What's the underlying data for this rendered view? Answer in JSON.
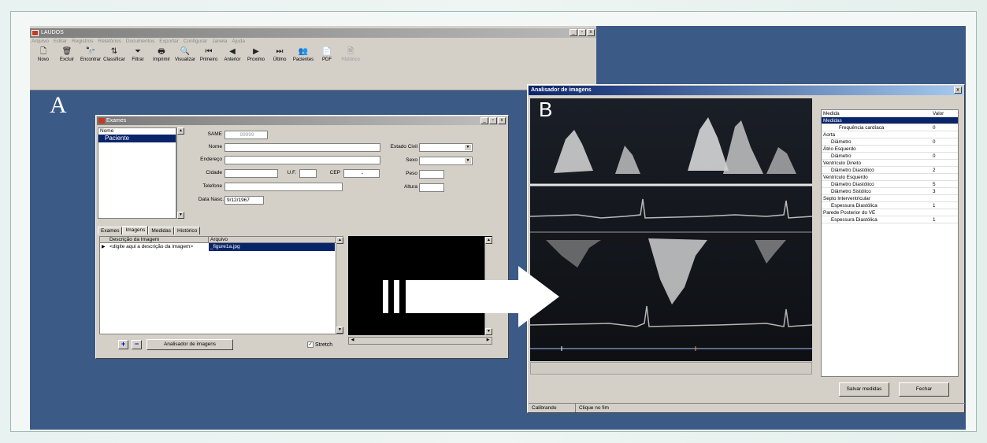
{
  "app": {
    "title": "LAUDOS",
    "menu": [
      "Arquivo",
      "Editar",
      "Registros",
      "Relatórios",
      "Documentos",
      "Exportar",
      "Configurar",
      "Janela",
      "Ajuda"
    ],
    "toolbar": [
      {
        "label": "Novo",
        "icon": "new-document-icon",
        "glyph": "🗋"
      },
      {
        "label": "Excluir",
        "icon": "trash-icon",
        "glyph": "🗑"
      },
      {
        "label": "Encontrar",
        "icon": "binoculars-icon",
        "glyph": "🔭"
      },
      {
        "label": "Classificar",
        "icon": "sort-icon",
        "glyph": "⇅"
      },
      {
        "label": "Filtrar",
        "icon": "filter-icon",
        "glyph": "⏷"
      },
      {
        "label": "Imprimir",
        "icon": "printer-icon",
        "glyph": "🖶"
      },
      {
        "label": "Visualizar",
        "icon": "preview-icon",
        "glyph": "🔍"
      },
      {
        "label": "Primeiro",
        "icon": "first-record-icon",
        "glyph": "⏮"
      },
      {
        "label": "Anterior",
        "icon": "previous-record-icon",
        "glyph": "◀"
      },
      {
        "label": "Proximo",
        "icon": "next-record-icon",
        "glyph": "▶"
      },
      {
        "label": "Último",
        "icon": "last-record-icon",
        "glyph": "⏭"
      },
      {
        "label": "Pacientes",
        "icon": "patients-icon",
        "glyph": "👥"
      },
      {
        "label": "PDF",
        "icon": "pdf-icon",
        "glyph": "📄"
      },
      {
        "label": "Histórico",
        "icon": "history-icon",
        "glyph": "🗎",
        "disabled": true
      }
    ],
    "window_buttons": [
      "_",
      "▫",
      "x"
    ]
  },
  "labels": {
    "a": "A",
    "b": "B"
  },
  "exames": {
    "title": "Exames",
    "list_header": "Nome",
    "selected_patient": "Paciente",
    "fields": {
      "same_label": "SAME",
      "same_value": "99999",
      "nome_label": "Nome",
      "endereco_label": "Endereço",
      "cidade_label": "Cidade",
      "uf_label": "U.F.",
      "cep_label": "CEP",
      "cep_value": "-",
      "telefone_label": "Telefone",
      "nasc_label": "Data Nasc.",
      "nasc_value": "9/12/1967",
      "estado_civil_label": "Estado Civil",
      "sexo_label": "Sexo",
      "peso_label": "Peso",
      "altura_label": "Altura"
    },
    "tabs": [
      "Exames",
      "Imagens",
      "Medidas",
      "Histórico"
    ],
    "active_tab": "Imagens",
    "grid_headers": [
      "Descrição da Imagem",
      "Arquivo"
    ],
    "grid_row": {
      "descricao": "<digite aqui a descrição da imagem>",
      "arquivo": "_figure1a.jpg"
    },
    "add_label": "+",
    "remove_label": "−",
    "analyzer_button": "Analisador de imagens",
    "stretch_label": "Stretch",
    "stretch_checked": true
  },
  "analisador": {
    "title": "Analisador de imagens",
    "table_headers": {
      "medida": "Medida",
      "valor": "Valor"
    },
    "rows": [
      {
        "name": "Medidas",
        "value": "",
        "level": 0,
        "selected": true
      },
      {
        "name": "Frequência cardíaca",
        "value": "0",
        "level": 2
      },
      {
        "name": "Aorta",
        "value": "",
        "level": 0
      },
      {
        "name": "Diâmetro",
        "value": "0",
        "level": 1
      },
      {
        "name": "Átrio Esquerdo",
        "value": "",
        "level": 0
      },
      {
        "name": "Diâmetro",
        "value": "0",
        "level": 1
      },
      {
        "name": "Ventrículo Direito",
        "value": "",
        "level": 0
      },
      {
        "name": "Diâmetro Diastólico",
        "value": "2",
        "level": 1
      },
      {
        "name": "Ventrículo Esquerdo",
        "value": "",
        "level": 0
      },
      {
        "name": "Diâmetro Diastólico",
        "value": "5",
        "level": 1
      },
      {
        "name": "Diâmetro Sistólico",
        "value": "3",
        "level": 1
      },
      {
        "name": "Septo Interventricular",
        "value": "",
        "level": 0
      },
      {
        "name": "Espessura Diastólica",
        "value": "1",
        "level": 1
      },
      {
        "name": "Parede Posterior do VE",
        "value": "",
        "level": 0
      },
      {
        "name": "Espessura Diastólica",
        "value": "1",
        "level": 1
      }
    ],
    "save_button": "Salvar medidas",
    "close_button": "Fechar",
    "status": [
      "Calibrando",
      "Clique no fim"
    ],
    "close_x": "x"
  }
}
